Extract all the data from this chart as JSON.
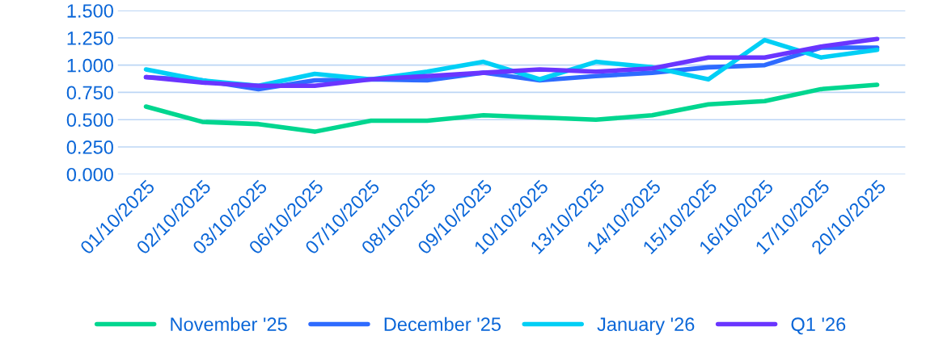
{
  "chart_data": {
    "type": "line",
    "categories": [
      "01/10/2025",
      "02/10/2025",
      "03/10/2025",
      "06/10/2025",
      "07/10/2025",
      "08/10/2025",
      "09/10/2025",
      "10/10/2025",
      "13/10/2025",
      "14/10/2025",
      "15/10/2025",
      "16/10/2025",
      "17/10/2025",
      "20/10/2025"
    ],
    "series": [
      {
        "name": "November '25",
        "color": "#00d68f",
        "values": [
          0.62,
          0.48,
          0.46,
          0.39,
          0.49,
          0.49,
          0.54,
          0.52,
          0.5,
          0.54,
          0.64,
          0.67,
          0.78,
          0.82
        ]
      },
      {
        "name": "December '25",
        "color": "#2e6bff",
        "values": [
          0.89,
          0.86,
          0.78,
          0.86,
          0.87,
          0.86,
          0.93,
          0.86,
          0.9,
          0.93,
          0.98,
          1.0,
          1.16,
          1.16
        ]
      },
      {
        "name": "January '26",
        "color": "#00cff5",
        "values": [
          0.96,
          0.86,
          0.81,
          0.92,
          0.87,
          0.94,
          1.03,
          0.87,
          1.03,
          0.98,
          0.87,
          1.23,
          1.07,
          1.14
        ]
      },
      {
        "name": "Q1 '26",
        "color": "#6a35ff",
        "values": [
          0.89,
          0.84,
          0.81,
          0.81,
          0.87,
          0.9,
          0.93,
          0.96,
          0.94,
          0.97,
          1.07,
          1.07,
          1.17,
          1.24
        ]
      }
    ],
    "ylim": [
      0,
      1.5
    ],
    "yticks": [
      {
        "value": 0,
        "label": "0.000"
      },
      {
        "value": 0.25,
        "label": "0.250"
      },
      {
        "value": 0.5,
        "label": "0.500"
      },
      {
        "value": 0.75,
        "label": "0.750"
      },
      {
        "value": 1.0,
        "label": "1.000"
      },
      {
        "value": 1.25,
        "label": "1.250"
      },
      {
        "value": 1.5,
        "label": "1.500"
      }
    ],
    "grid": "y",
    "legend": "bottom",
    "marker": "none",
    "line_style": "solid"
  }
}
